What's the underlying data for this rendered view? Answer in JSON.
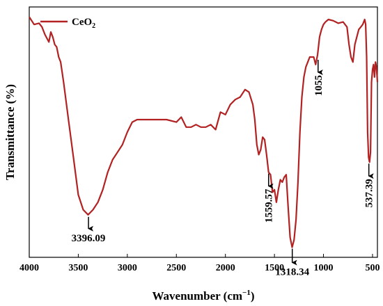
{
  "chart_data": {
    "type": "line",
    "title": "",
    "xlabel": "Wavenumber (cm",
    "xlabel_sup": "−1",
    "xlabel_tail": ")",
    "ylabel": "Transmittance (%)",
    "xlim": [
      4000,
      450
    ],
    "x_reversed": true,
    "ylim": [
      0,
      100
    ],
    "y_ticks_shown": false,
    "grid": false,
    "legend_position": "top-left",
    "x_ticks": [
      4000,
      3500,
      3000,
      2500,
      2000,
      1500,
      1000,
      500
    ],
    "series": [
      {
        "name_main": "CeO",
        "name_sub": "2",
        "color": "#b22222",
        "x": [
          4000,
          3950,
          3900,
          3870,
          3840,
          3800,
          3780,
          3760,
          3740,
          3720,
          3700,
          3680,
          3650,
          3600,
          3550,
          3500,
          3450,
          3400,
          3350,
          3300,
          3250,
          3200,
          3150,
          3100,
          3050,
          3000,
          2950,
          2900,
          2850,
          2800,
          2700,
          2600,
          2500,
          2450,
          2400,
          2350,
          2300,
          2250,
          2200,
          2150,
          2100,
          2050,
          2000,
          1950,
          1900,
          1850,
          1800,
          1760,
          1720,
          1700,
          1680,
          1660,
          1640,
          1620,
          1600,
          1580,
          1560,
          1540,
          1520,
          1500,
          1480,
          1460,
          1440,
          1420,
          1400,
          1380,
          1360,
          1340,
          1320,
          1300,
          1280,
          1260,
          1240,
          1220,
          1200,
          1180,
          1160,
          1140,
          1120,
          1100,
          1080,
          1060,
          1040,
          1020,
          1000,
          980,
          950,
          900,
          850,
          800,
          760,
          740,
          720,
          700,
          680,
          660,
          640,
          620,
          600,
          580,
          570,
          560,
          550,
          540,
          530,
          520,
          510,
          500,
          490,
          480,
          470,
          460,
          450
        ],
        "y": [
          96,
          93,
          93.5,
          92,
          89,
          86,
          90,
          88,
          85,
          84,
          80,
          78,
          70,
          55,
          40,
          25,
          19,
          17,
          19,
          22,
          27,
          34,
          39,
          42,
          45,
          50,
          54,
          55,
          55,
          55,
          55,
          55,
          54,
          56,
          52,
          52,
          53,
          52,
          52,
          53,
          51,
          58,
          57,
          61,
          63,
          64,
          67,
          66,
          61,
          55,
          45,
          41,
          43,
          48,
          47,
          41,
          34,
          33,
          26,
          27,
          22,
          27,
          31,
          30,
          32,
          33,
          20,
          8,
          4,
          7,
          15,
          30,
          50,
          64,
          72,
          76,
          78,
          80,
          80,
          80,
          77,
          81,
          88,
          91,
          93,
          94,
          95,
          94.5,
          93.5,
          94,
          92,
          85,
          80,
          78,
          85,
          88,
          91,
          92,
          93,
          95,
          93,
          80,
          50,
          40,
          38,
          42,
          70,
          75,
          77,
          72,
          78,
          76,
          70
        ]
      }
    ],
    "annotations": [
      {
        "label": "3396.09",
        "x": 3396.09,
        "y": 17
      },
      {
        "label": "1559.57",
        "x": 1559.57,
        "y": 34
      },
      {
        "label": "1318.34",
        "x": 1318.34,
        "y": 4
      },
      {
        "label": "1055",
        "x": 1055,
        "y": 80
      },
      {
        "label": "537.39",
        "x": 537.39,
        "y": 38
      }
    ]
  }
}
